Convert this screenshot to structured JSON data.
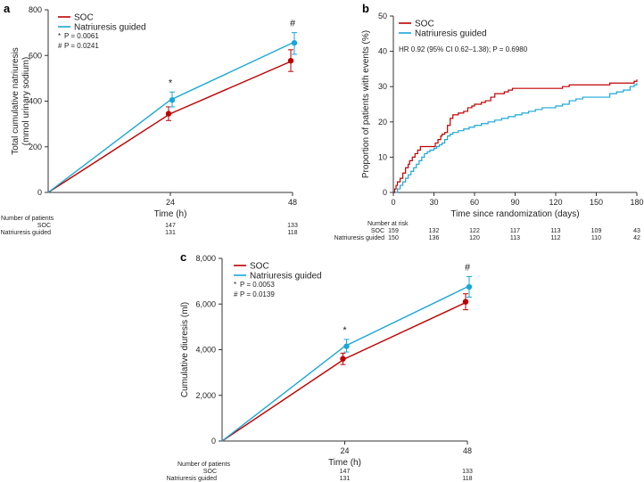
{
  "colors": {
    "soc": "#c00000",
    "ng": "#1aa7d6",
    "axis": "#333333"
  },
  "chart_data": [
    {
      "panel": "a",
      "type": "line",
      "x": [
        0,
        24,
        48
      ],
      "xtick_labels": [
        "0",
        "24",
        "48"
      ],
      "xlabel": "Time (h)",
      "ylabel_line1": "Total cumulative natriuresis",
      "ylabel_line2": "(mmol urinary sodium)",
      "ylim": [
        0,
        800
      ],
      "yticks": [
        0,
        200,
        400,
        600,
        800
      ],
      "ytick_labels": [
        "0",
        "200",
        "400",
        "600",
        "800"
      ],
      "series": [
        {
          "name": "SOC",
          "color_key": "soc",
          "values": [
            0,
            345,
            577
          ],
          "err_low": [
            null,
            315,
            530
          ],
          "err_high": [
            null,
            375,
            625
          ]
        },
        {
          "name": "Natriuresis guided",
          "color_key": "ng",
          "values": [
            0,
            405,
            655
          ],
          "err_low": [
            null,
            375,
            605
          ],
          "err_high": [
            null,
            440,
            700
          ]
        }
      ],
      "markers": [
        {
          "x": 24,
          "label": "*"
        },
        {
          "x": 48,
          "label": "#"
        }
      ],
      "pvalues": [
        {
          "symbol": "*",
          "text": "P = 0.0061"
        },
        {
          "symbol": "#",
          "text": "P = 0.0241"
        }
      ],
      "risk_table": {
        "title": "Number of patients",
        "rows": [
          {
            "label": "SOC",
            "values": [
              "147",
              "133"
            ]
          },
          {
            "label": "Natriuresis guided",
            "values": [
              "131",
              "118"
            ]
          }
        ],
        "x": [
          24,
          48
        ]
      }
    },
    {
      "panel": "b",
      "type": "line",
      "subtype": "step",
      "xlabel": "Time since randomization (days)",
      "ylabel": "Proportion of patients with events (%)",
      "xlim": [
        0,
        180
      ],
      "xticks": [
        0,
        30,
        60,
        90,
        120,
        150,
        180
      ],
      "xtick_labels": [
        "0",
        "30",
        "60",
        "90",
        "120",
        "150",
        "180"
      ],
      "ylim": [
        0,
        50
      ],
      "yticks": [
        0,
        10,
        20,
        30,
        40,
        50
      ],
      "ytick_labels": [
        "0",
        "10",
        "20",
        "30",
        "40",
        "50"
      ],
      "annotation": "HR 0.92 (95% CI 0.62–1.38); P = 0.6980",
      "series": [
        {
          "name": "SOC",
          "color_key": "soc",
          "x": [
            0,
            1,
            2,
            3,
            5,
            7,
            9,
            11,
            12,
            14,
            16,
            18,
            20,
            22,
            25,
            27,
            29,
            31,
            33,
            35,
            36,
            38,
            40,
            42,
            44,
            46,
            48,
            52,
            55,
            58,
            60,
            63,
            65,
            68,
            72,
            75,
            78,
            82,
            85,
            88,
            90,
            100,
            110,
            120,
            125,
            130,
            140,
            150,
            160,
            170,
            178,
            180
          ],
          "y": [
            0,
            1,
            2,
            3,
            4,
            5.5,
            7,
            8,
            9,
            10,
            11,
            12,
            13,
            13,
            13,
            13,
            13,
            14,
            15,
            16,
            16.5,
            17,
            19,
            21,
            22,
            22,
            22.5,
            23,
            24,
            24.5,
            25,
            25,
            25.5,
            26,
            27,
            28,
            28,
            28.5,
            29,
            29.5,
            29.5,
            29.5,
            29.5,
            29.5,
            30,
            30.5,
            30.5,
            30.5,
            31,
            31,
            31.5,
            32
          ]
        },
        {
          "name": "Natriuresis guided",
          "color_key": "ng",
          "x": [
            0,
            3,
            5,
            7,
            9,
            11,
            13,
            15,
            17,
            19,
            21,
            23,
            25,
            27,
            30,
            32,
            34,
            36,
            38,
            40,
            42,
            44,
            48,
            52,
            56,
            60,
            65,
            70,
            75,
            80,
            85,
            90,
            95,
            100,
            105,
            110,
            115,
            120,
            125,
            130,
            135,
            140,
            145,
            150,
            160,
            165,
            170,
            175,
            178,
            180
          ],
          "y": [
            0,
            1,
            2,
            3,
            4,
            5,
            6,
            7,
            8,
            9,
            10,
            11,
            11.5,
            12,
            12.5,
            13,
            13.5,
            14,
            15,
            16,
            16.5,
            17,
            17.5,
            18,
            18.5,
            19,
            19.5,
            20,
            20.5,
            21,
            21.5,
            22,
            22.5,
            23,
            23.5,
            24,
            24,
            24.5,
            25,
            26,
            26.5,
            27,
            27,
            27,
            28,
            28.5,
            29,
            30,
            30.5,
            31
          ]
        }
      ],
      "risk_table": {
        "title": "Number at risk",
        "rows": [
          {
            "label": "SOC",
            "values": [
              "159",
              "132",
              "122",
              "117",
              "113",
              "109",
              "43"
            ]
          },
          {
            "label": "Natriuresis guided",
            "values": [
              "150",
              "136",
              "120",
              "113",
              "112",
              "110",
              "42"
            ]
          }
        ],
        "x": [
          0,
          30,
          60,
          90,
          120,
          150,
          180
        ]
      }
    },
    {
      "panel": "c",
      "type": "line",
      "x": [
        0,
        24,
        48
      ],
      "xtick_labels": [
        "0",
        "24",
        "48"
      ],
      "xlabel": "Time (h)",
      "ylabel": "Cumulative diuresis (ml)",
      "ylim": [
        0,
        8000
      ],
      "yticks": [
        0,
        2000,
        4000,
        6000,
        8000
      ],
      "ytick_labels": [
        "0",
        "2,000",
        "4,000",
        "6,000",
        "8,000"
      ],
      "series": [
        {
          "name": "SOC",
          "color_key": "soc",
          "values": [
            0,
            3600,
            6100
          ],
          "err_low": [
            null,
            3350,
            5750
          ],
          "err_high": [
            null,
            3850,
            6450
          ]
        },
        {
          "name": "Natriuresis guided",
          "color_key": "ng",
          "values": [
            0,
            4150,
            6750
          ],
          "err_low": [
            null,
            3900,
            6300
          ],
          "err_high": [
            null,
            4450,
            7200
          ]
        }
      ],
      "markers": [
        {
          "x": 24,
          "label": "*"
        },
        {
          "x": 48,
          "label": "#"
        }
      ],
      "pvalues": [
        {
          "symbol": "*",
          "text": "P = 0.0053"
        },
        {
          "symbol": "#",
          "text": "P = 0.0139"
        }
      ],
      "risk_table": {
        "title": "Number of patients",
        "rows": [
          {
            "label": "SOC",
            "values": [
              "147",
              "133"
            ]
          },
          {
            "label": "Natriuresis guided",
            "values": [
              "131",
              "118"
            ]
          }
        ],
        "x": [
          24,
          48
        ]
      }
    }
  ]
}
